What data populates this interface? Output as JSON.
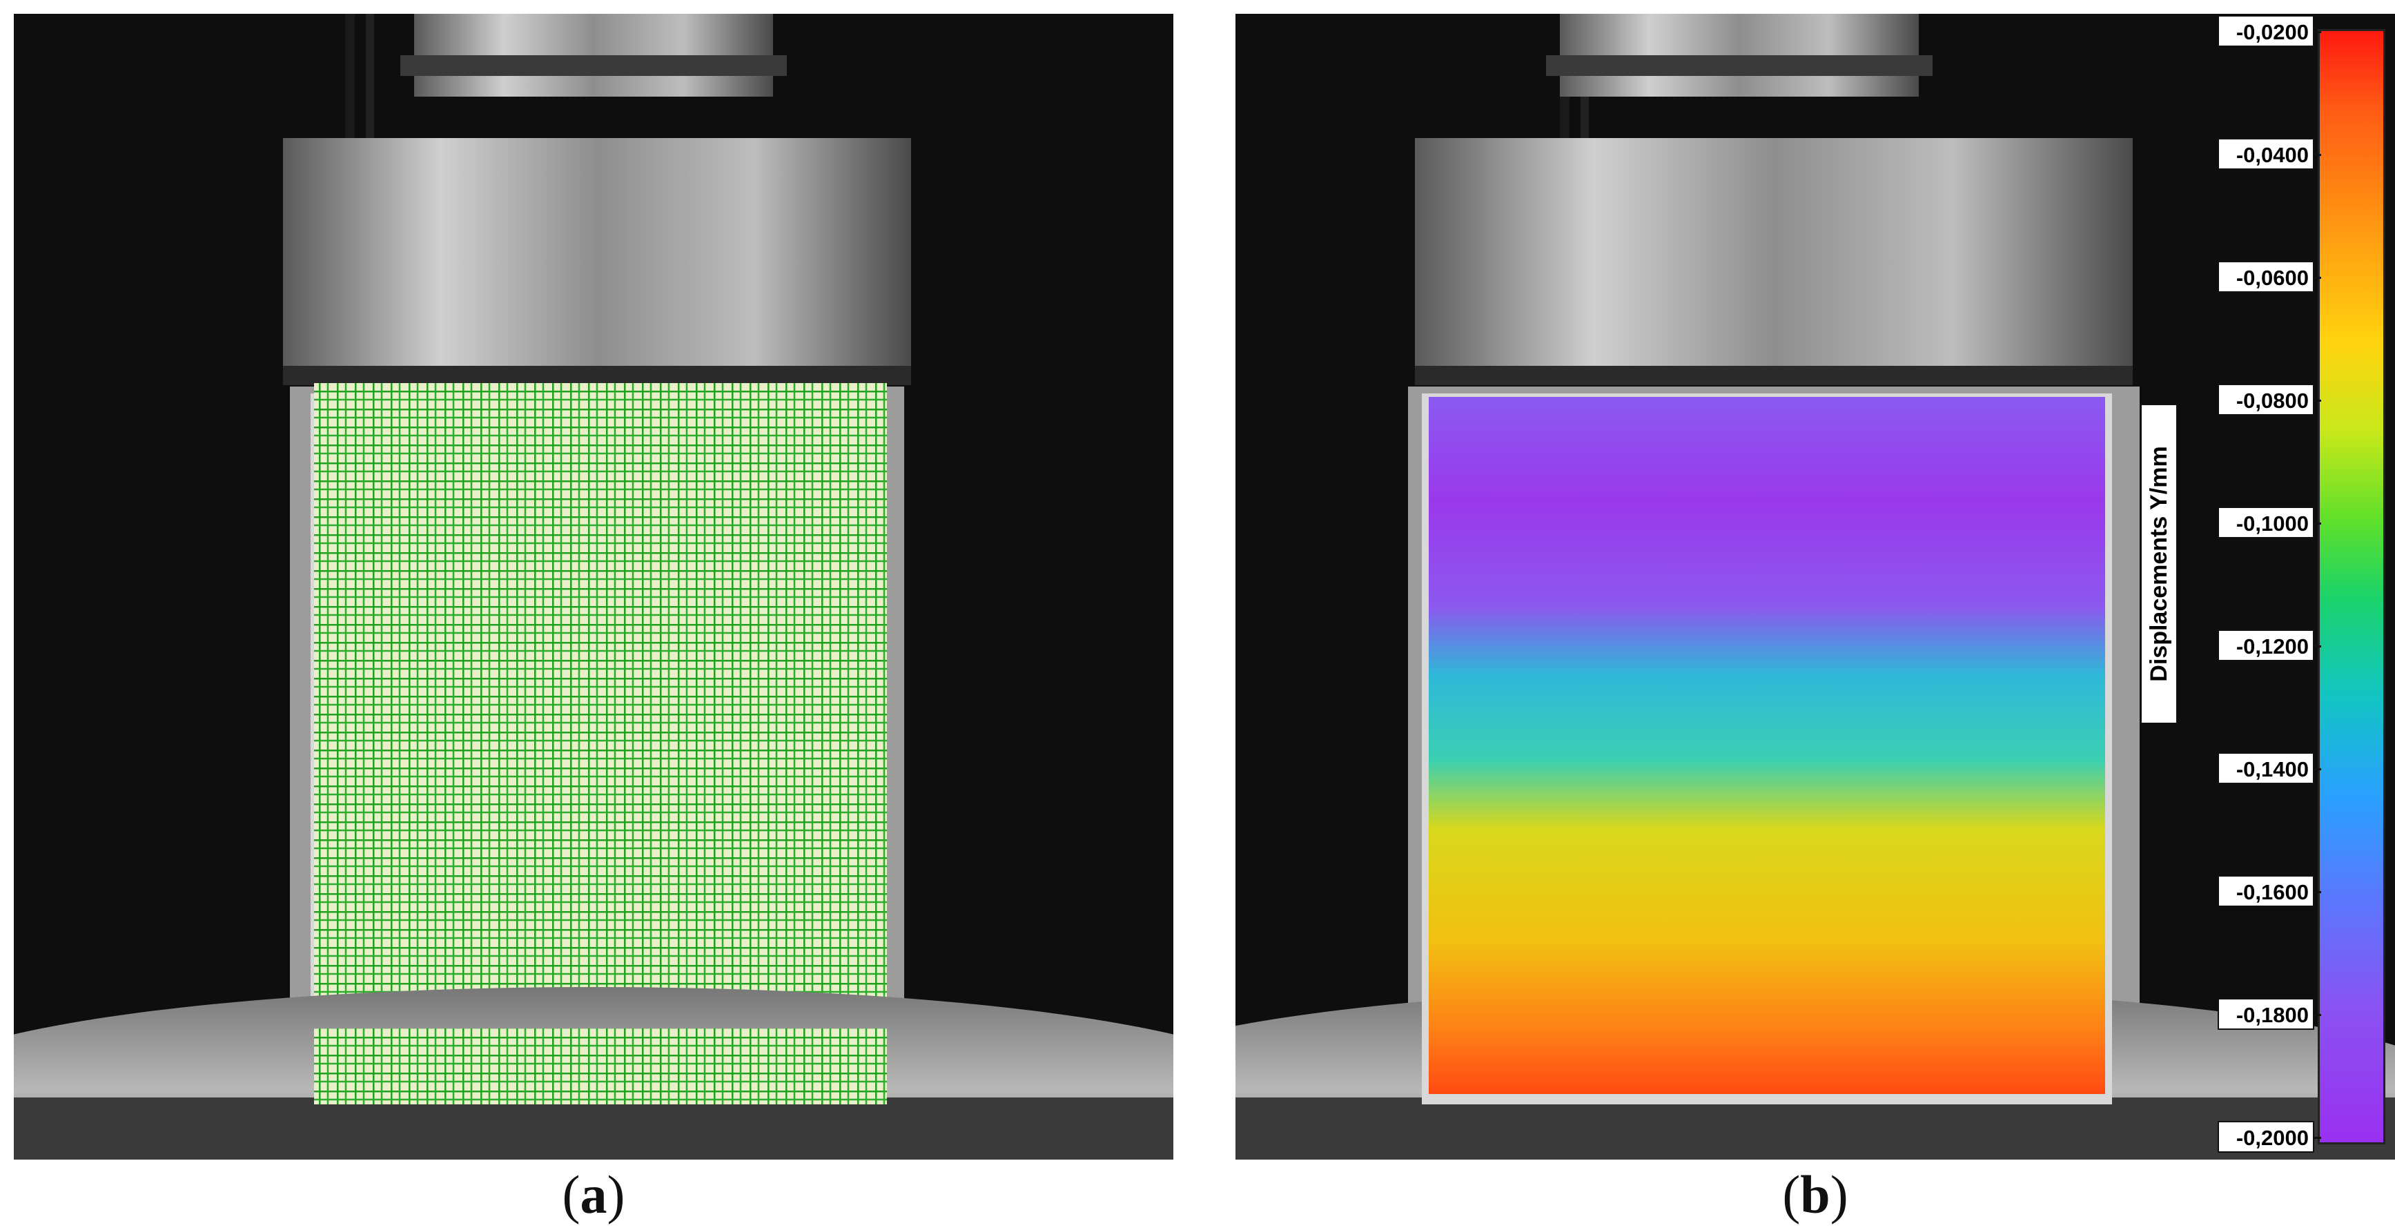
{
  "panels": [
    {
      "id": "a",
      "caption_prefix": "(",
      "caption_letter": "a",
      "caption_suffix": ")"
    },
    {
      "id": "b",
      "caption_prefix": "(",
      "caption_letter": "b",
      "caption_suffix": ")"
    }
  ],
  "colorbar": {
    "label": "Displacements Y/mm",
    "ticks": [
      "-0,0200",
      "-0,0400",
      "-0,0600",
      "-0,0800",
      "-0,1000",
      "-0,1200",
      "-0,1400",
      "-0,1600",
      "-0,1800",
      "-0,2000"
    ],
    "colors": [
      "#ff1a10",
      "#ff9a12",
      "#ffd30e",
      "#5fe02a",
      "#12c4c4",
      "#5a78ff",
      "#9a30f0"
    ]
  },
  "colors": {
    "grid_overlay": "#1fa01f",
    "background": "#0e0e0e"
  }
}
